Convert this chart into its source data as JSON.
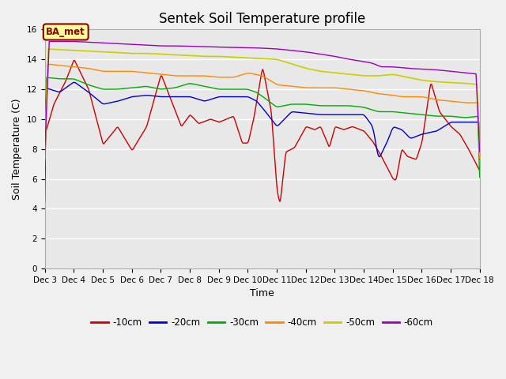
{
  "title": "Sentek Soil Temperature profile",
  "xlabel": "Time",
  "ylabel": "Soil Temperature (C)",
  "ylim": [
    0,
    16
  ],
  "yticks": [
    0,
    2,
    4,
    6,
    8,
    10,
    12,
    14,
    16
  ],
  "fig_bg": "#f0f0f0",
  "plot_bg": "#e8e8e8",
  "annotation_text": "BA_met",
  "annotation_bg": "#ffff99",
  "annotation_border": "#8B0000",
  "legend_labels": [
    "-10cm",
    "-20cm",
    "-30cm",
    "-40cm",
    "-50cm",
    "-60cm"
  ],
  "legend_colors": [
    "#cc0000",
    "#0000cc",
    "#00aa00",
    "#ff8800",
    "#cccc00",
    "#9900bb"
  ],
  "series_colors": {
    "d10": "#cc0000",
    "d20": "#0000cc",
    "d30": "#00aa00",
    "d40": "#ff8800",
    "d50": "#cccc00",
    "d60": "#9900bb"
  },
  "xtick_labels": [
    "Dec 3",
    "Dec 4",
    "Dec 5",
    "Dec 6",
    "Dec 7",
    "Dec 8",
    "Dec 9",
    "Dec 10",
    "Dec 11",
    "Dec 12",
    "Dec 13",
    "Dec 14",
    "Dec 15",
    "Dec 16",
    "Dec 17",
    "Dec 18"
  ],
  "xtick_positions": [
    3,
    4,
    5,
    6,
    7,
    8,
    9,
    10,
    11,
    12,
    13,
    14,
    15,
    16,
    17,
    18
  ],
  "grid_color": "#ffffff",
  "title_fontsize": 12,
  "axis_fontsize": 9,
  "tick_fontsize": 7.5,
  "legend_fontsize": 8.5
}
